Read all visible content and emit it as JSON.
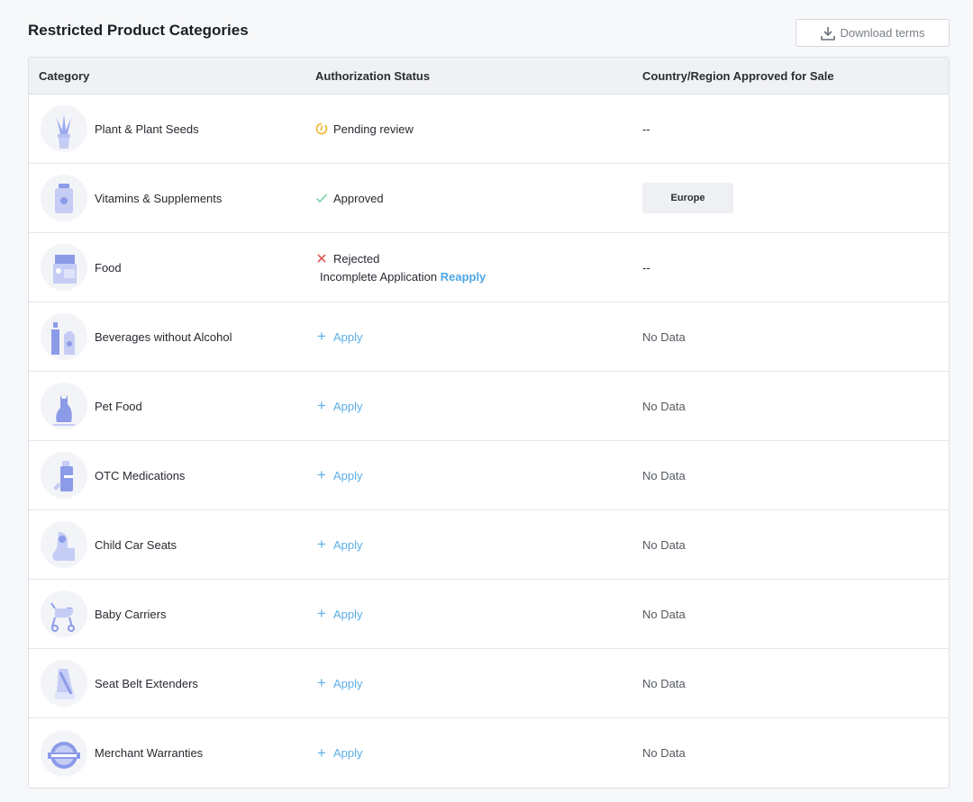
{
  "title": "Restricted Product Categories",
  "download_label": "Download terms",
  "columns": [
    "Category",
    "Authorization Status",
    "Country/Region Approved for Sale"
  ],
  "colors": {
    "accent": "#5aaee6",
    "pending": "#f0b429",
    "approved": "#6fcf97",
    "rejected": "#e0605a",
    "icon": "#9aa8ee"
  },
  "rows": [
    {
      "category": "Plant & Plant Seeds",
      "icon": "plant-icon",
      "status": "Pending review",
      "status_type": "pending",
      "region": "--"
    },
    {
      "category": "Vitamins & Supplements",
      "icon": "vitamin-bottle-icon",
      "status": "Approved",
      "status_type": "approved",
      "region": "Europe"
    },
    {
      "category": "Food",
      "icon": "food-icon",
      "status": "Rejected",
      "status_type": "rejected",
      "reason": "Incomplete Application",
      "reason_link": "Reapply",
      "region": "--"
    },
    {
      "category": "Beverages without Alcohol",
      "icon": "beverage-icon",
      "status": "Apply",
      "status_type": "apply",
      "region": "No Data"
    },
    {
      "category": "Pet Food",
      "icon": "cat-icon",
      "status": "Apply",
      "status_type": "apply",
      "region": "No Data"
    },
    {
      "category": "OTC Medications",
      "icon": "medication-icon",
      "status": "Apply",
      "status_type": "apply",
      "region": "No Data"
    },
    {
      "category": "Child Car Seats",
      "icon": "car-seat-icon",
      "status": "Apply",
      "status_type": "apply",
      "region": "No Data"
    },
    {
      "category": "Baby Carriers",
      "icon": "stroller-icon",
      "status": "Apply",
      "status_type": "apply",
      "region": "No Data"
    },
    {
      "category": "Seat Belt Extenders",
      "icon": "seat-belt-icon",
      "status": "Apply",
      "status_type": "apply",
      "region": "No Data"
    },
    {
      "category": "Merchant Warranties",
      "icon": "warranty-badge-icon",
      "status": "Apply",
      "status_type": "apply",
      "region": "No Data"
    }
  ]
}
